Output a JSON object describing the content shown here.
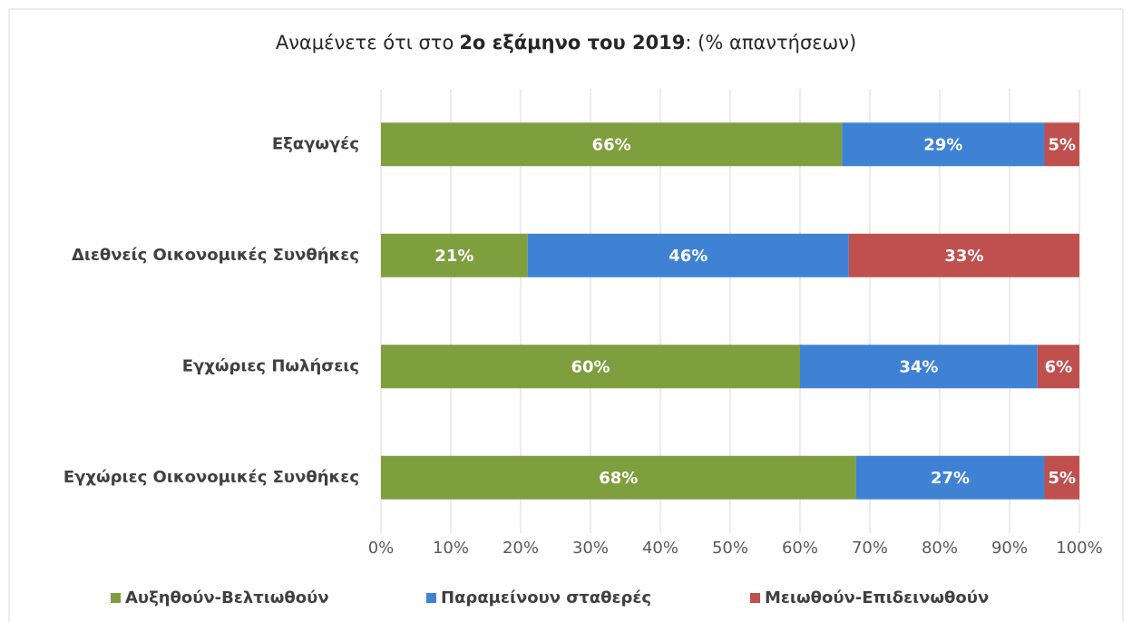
{
  "chart_data": {
    "type": "stacked_barh",
    "title": [
      "Αναμένετε ότι στο",
      "2ο εξάμηνο του 2019",
      ": (% απαντήσεων)"
    ],
    "categories": [
      "Εξαγωγές",
      "Διεθνείς Οικονομικές Συνθήκες",
      "Εγχώριες Πωλήσεις",
      "Εγχώριες Οικονομικές Συνθήκες"
    ],
    "series": [
      {
        "name": "Αυξηθούν-Βελτιωθούν",
        "color": "#7f9f3f",
        "values": [
          66,
          21,
          60,
          68
        ],
        "value_labels": [
          "66%",
          "21%",
          "60%",
          "68%"
        ]
      },
      {
        "name": "Παραμείνουν σταθερές",
        "color": "#3f82d4",
        "values": [
          29,
          46,
          34,
          27
        ],
        "value_labels": [
          "29%",
          "46%",
          "34%",
          "27%"
        ]
      },
      {
        "name": "Μειωθούν-Επιδεινωθούν",
        "color": "#c0504d",
        "values": [
          5,
          33,
          6,
          5
        ],
        "value_labels": [
          "5%",
          "33%",
          "6%",
          "5%"
        ]
      }
    ],
    "xlim": [
      0,
      100
    ],
    "xticks": [
      {
        "value": 0,
        "label": "0%"
      },
      {
        "value": 10,
        "label": "10%"
      },
      {
        "value": 20,
        "label": "20%"
      },
      {
        "value": 30,
        "label": "30%"
      },
      {
        "value": 40,
        "label": "40%"
      },
      {
        "value": 50,
        "label": "50%"
      },
      {
        "value": 60,
        "label": "60%"
      },
      {
        "value": 70,
        "label": "70%"
      },
      {
        "value": 80,
        "label": "80%"
      },
      {
        "value": 90,
        "label": "90%"
      },
      {
        "value": 100,
        "label": "100%"
      }
    ],
    "grid": true,
    "legend": "bottom"
  }
}
